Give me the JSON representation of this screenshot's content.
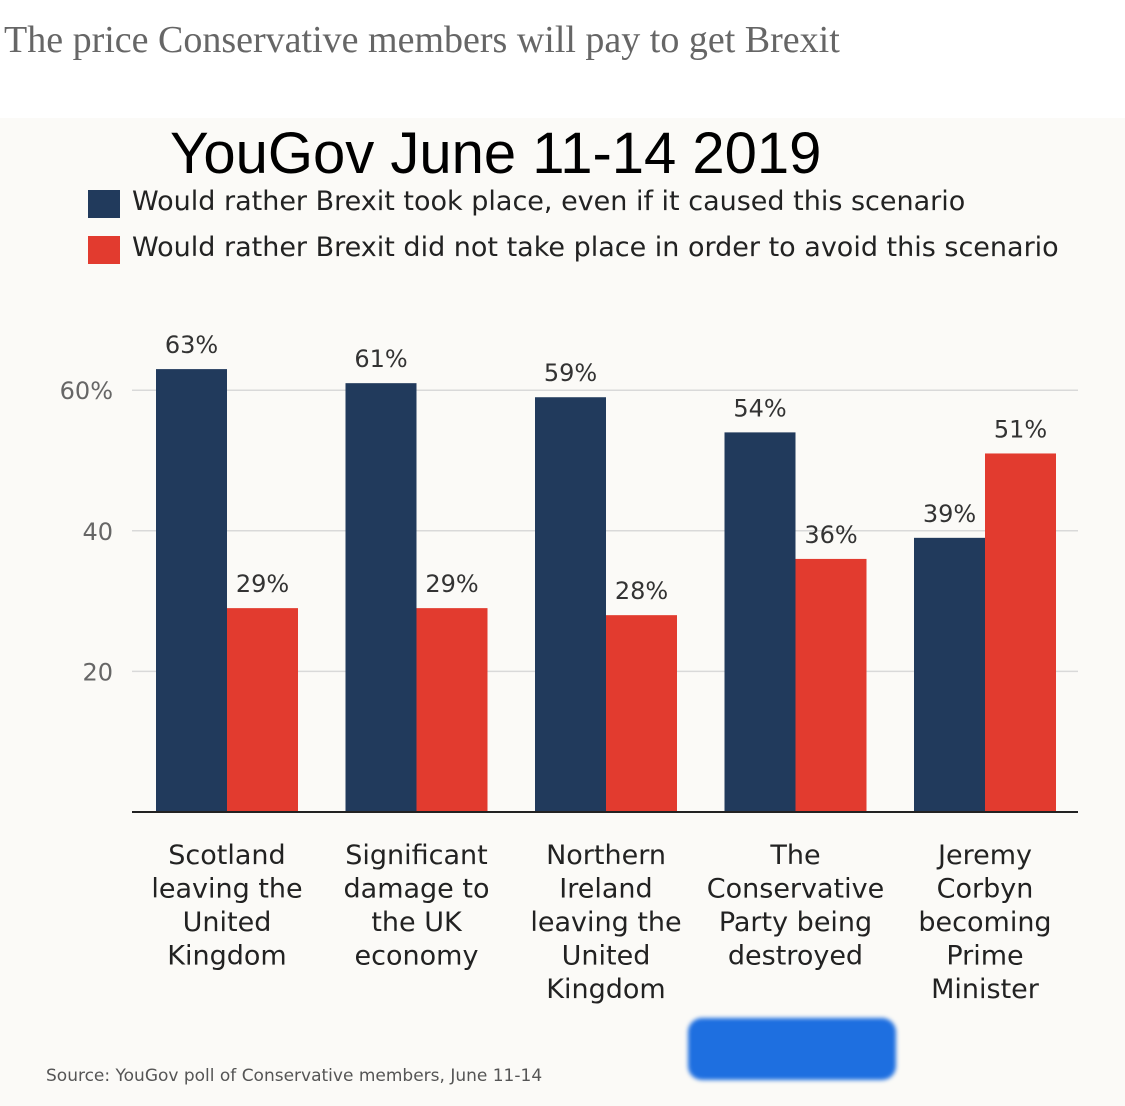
{
  "header": {
    "article_title": "The price Conservative members will pay to get Brexit",
    "overlay_title": "YouGov June 11-14 2019"
  },
  "colors": {
    "series_a": "#213a5c",
    "series_b": "#e23b2f",
    "redaction": "#1e6fe0"
  },
  "chart_data": {
    "type": "bar",
    "title": "",
    "xlabel": "",
    "ylabel": "",
    "ylim": [
      0,
      65
    ],
    "yticks": [
      {
        "value": 20,
        "label": "20"
      },
      {
        "value": 40,
        "label": "40"
      },
      {
        "value": 60,
        "label": "60%"
      }
    ],
    "grid": true,
    "legend_position": "top-left",
    "categories": [
      [
        "Scotland",
        "leaving the",
        "United",
        "Kingdom"
      ],
      [
        "Significant",
        "damage to",
        "the UK",
        "economy"
      ],
      [
        "Northern",
        "Ireland",
        "leaving the",
        "United",
        "Kingdom"
      ],
      [
        "The",
        "Conservative",
        "Party being",
        "destroyed"
      ],
      [
        "Jeremy",
        "Corbyn",
        "becoming",
        "Prime",
        "Minister"
      ]
    ],
    "series": [
      {
        "name": "Would rather Brexit took place, even if it caused this scenario",
        "values": [
          63,
          61,
          59,
          54,
          39
        ],
        "labels": [
          "63%",
          "61%",
          "59%",
          "54%",
          "39%"
        ]
      },
      {
        "name": "Would rather Brexit did not take place in order to avoid this scenario",
        "values": [
          29,
          29,
          28,
          36,
          51
        ],
        "labels": [
          "29%",
          "29%",
          "28%",
          "36%",
          "51%"
        ]
      }
    ],
    "source": "Source: YouGov poll of Conservative members, June 11-14"
  }
}
